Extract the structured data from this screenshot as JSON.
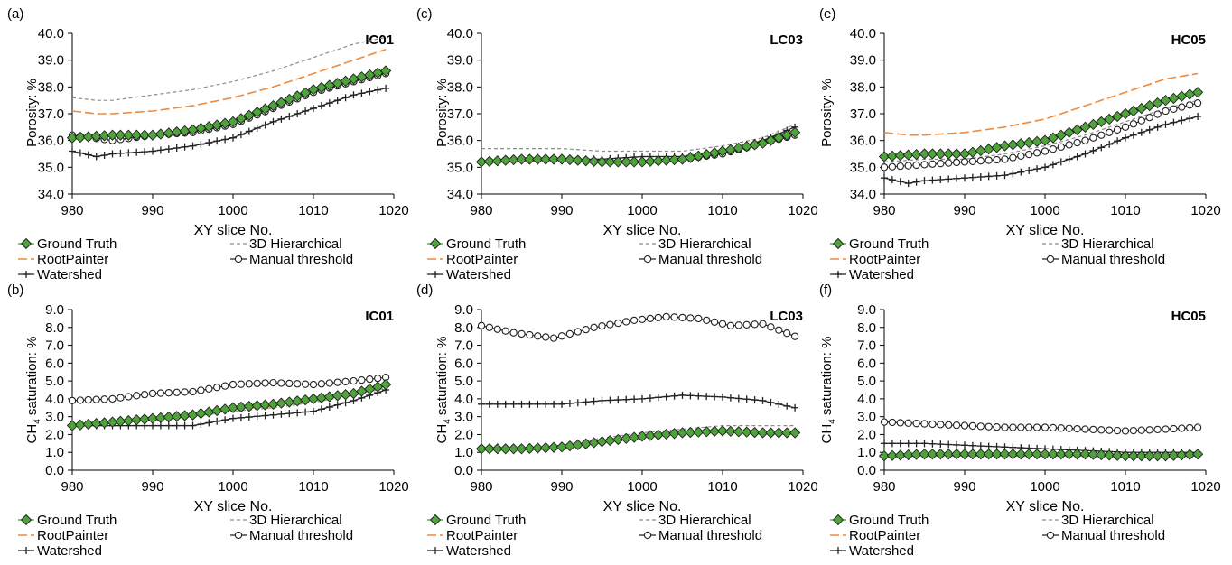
{
  "figure": {
    "xlabel": "XY slice No.",
    "x_ticks": [
      980,
      990,
      1000,
      1010,
      1020
    ],
    "legend_order": [
      "Ground Truth",
      "3D Hierarchical",
      "RootPainter",
      "Manual threshold",
      "Watershed"
    ],
    "series_styles": {
      "Ground Truth": {
        "color": "#3f9a2c",
        "marker": "diamond",
        "fill": "#4ea33a",
        "line": "solid"
      },
      "3D Hierarchical": {
        "color": "#8c8c8c",
        "marker": "none",
        "line": "dashed"
      },
      "RootPainter": {
        "color": "#f08a3c",
        "marker": "none",
        "line": "long-dash"
      },
      "Manual threshold": {
        "color": "#222222",
        "marker": "open-circle",
        "line": "solid"
      },
      "Watershed": {
        "color": "#222222",
        "marker": "plus",
        "line": "solid"
      }
    }
  },
  "chart_data": [
    {
      "panel": "(a)",
      "tag": "IC01",
      "type": "line",
      "ylabel": "Porosity: %",
      "ylim": [
        34.0,
        40.0
      ],
      "y_ticks": [
        "34.0",
        "35.0",
        "36.0",
        "37.0",
        "38.0",
        "39.0",
        "40.0"
      ],
      "xlim": [
        980,
        1020
      ],
      "series": [
        {
          "name": "Ground Truth",
          "x": [
            980,
            985,
            990,
            995,
            1000,
            1005,
            1010,
            1015,
            1019
          ],
          "y": [
            36.1,
            36.2,
            36.2,
            36.4,
            36.7,
            37.3,
            37.9,
            38.3,
            38.6
          ]
        },
        {
          "name": "3D Hierarchical",
          "x": [
            980,
            983,
            985,
            990,
            995,
            1000,
            1005,
            1010,
            1015,
            1019
          ],
          "y": [
            37.6,
            37.5,
            37.5,
            37.7,
            37.9,
            38.2,
            38.6,
            39.1,
            39.6,
            39.85
          ]
        },
        {
          "name": "RootPainter",
          "x": [
            980,
            983,
            985,
            990,
            995,
            1000,
            1005,
            1010,
            1015,
            1019
          ],
          "y": [
            37.1,
            37.0,
            37.0,
            37.1,
            37.3,
            37.6,
            38.0,
            38.5,
            39.0,
            39.4
          ]
        },
        {
          "name": "Manual threshold",
          "x": [
            980,
            985,
            990,
            995,
            1000,
            1005,
            1010,
            1015,
            1019
          ],
          "y": [
            36.2,
            36.0,
            36.2,
            36.3,
            36.6,
            37.2,
            37.8,
            38.2,
            38.5
          ]
        },
        {
          "name": "Watershed",
          "x": [
            980,
            983,
            985,
            990,
            995,
            1000,
            1005,
            1010,
            1015,
            1019
          ],
          "y": [
            35.6,
            35.4,
            35.5,
            35.6,
            35.8,
            36.1,
            36.7,
            37.2,
            37.7,
            37.95
          ]
        }
      ]
    },
    {
      "panel": "(c)",
      "tag": "LC03",
      "type": "line",
      "ylabel": "Porosity: %",
      "ylim": [
        34.0,
        40.0
      ],
      "y_ticks": [
        "34.0",
        "35.0",
        "36.0",
        "37.0",
        "38.0",
        "39.0",
        "40.0"
      ],
      "xlim": [
        980,
        1020
      ],
      "series": [
        {
          "name": "Ground Truth",
          "x": [
            980,
            985,
            990,
            995,
            1000,
            1005,
            1010,
            1015,
            1019
          ],
          "y": [
            35.2,
            35.3,
            35.3,
            35.2,
            35.2,
            35.3,
            35.6,
            35.9,
            36.3
          ]
        },
        {
          "name": "3D Hierarchical",
          "x": [
            980,
            985,
            990,
            995,
            1000,
            1005,
            1010,
            1015,
            1019
          ],
          "y": [
            35.7,
            35.7,
            35.7,
            35.6,
            35.6,
            35.6,
            35.8,
            36.1,
            36.6
          ]
        },
        {
          "name": "RootPainter",
          "x": [
            980,
            985,
            990,
            995,
            1000,
            1005,
            1010,
            1015,
            1019
          ],
          "y": [
            35.2,
            35.2,
            35.3,
            35.2,
            35.2,
            35.3,
            35.6,
            36.0,
            36.4
          ]
        },
        {
          "name": "Manual threshold",
          "x": [
            980,
            985,
            990,
            995,
            1000,
            1005,
            1010,
            1015,
            1019
          ],
          "y": [
            35.2,
            35.3,
            35.3,
            35.2,
            35.2,
            35.3,
            35.5,
            35.9,
            36.2
          ]
        },
        {
          "name": "Watershed",
          "x": [
            980,
            985,
            990,
            995,
            1000,
            1005,
            1010,
            1015,
            1019
          ],
          "y": [
            35.2,
            35.3,
            35.3,
            35.3,
            35.4,
            35.4,
            35.6,
            36.0,
            36.5
          ]
        }
      ]
    },
    {
      "panel": "(e)",
      "tag": "HC05",
      "type": "line",
      "ylabel": "Porosity: %",
      "ylim": [
        34.0,
        40.0
      ],
      "y_ticks": [
        "34.0",
        "35.0",
        "36.0",
        "37.0",
        "38.0",
        "39.0",
        "40.0"
      ],
      "xlim": [
        980,
        1020
      ],
      "series": [
        {
          "name": "Ground Truth",
          "x": [
            980,
            985,
            990,
            995,
            1000,
            1005,
            1010,
            1015,
            1019
          ],
          "y": [
            35.4,
            35.5,
            35.5,
            35.8,
            36.0,
            36.5,
            37.0,
            37.5,
            37.8
          ]
        },
        {
          "name": "3D Hierarchical",
          "x": [
            980,
            985,
            990,
            995,
            1000,
            1005,
            1010,
            1015,
            1019
          ],
          "y": [
            35.2,
            35.3,
            35.3,
            35.5,
            35.8,
            36.2,
            36.7,
            37.2,
            37.5
          ]
        },
        {
          "name": "RootPainter",
          "x": [
            980,
            983,
            985,
            990,
            995,
            1000,
            1005,
            1010,
            1015,
            1019
          ],
          "y": [
            36.3,
            36.2,
            36.2,
            36.3,
            36.5,
            36.8,
            37.3,
            37.8,
            38.3,
            38.5
          ]
        },
        {
          "name": "Manual threshold",
          "x": [
            980,
            985,
            990,
            995,
            1000,
            1005,
            1010,
            1015,
            1019
          ],
          "y": [
            35.0,
            35.1,
            35.2,
            35.3,
            35.6,
            36.0,
            36.5,
            37.1,
            37.4
          ]
        },
        {
          "name": "Watershed",
          "x": [
            980,
            983,
            985,
            990,
            995,
            1000,
            1005,
            1010,
            1015,
            1019
          ],
          "y": [
            34.6,
            34.4,
            34.5,
            34.6,
            34.7,
            35.0,
            35.5,
            36.1,
            36.6,
            36.9
          ]
        }
      ]
    },
    {
      "panel": "(b)",
      "tag": "IC01",
      "type": "line",
      "ylabel": "CH4 saturation: %",
      "ylabel_parts": {
        "main": "CH",
        "sub": "4",
        "rest": " saturation: %"
      },
      "ylim": [
        0.0,
        9.0
      ],
      "y_ticks": [
        "0.0",
        "1.0",
        "2.0",
        "3.0",
        "4.0",
        "5.0",
        "6.0",
        "7.0",
        "8.0",
        "9.0"
      ],
      "xlim": [
        980,
        1020
      ],
      "series": [
        {
          "name": "Ground Truth",
          "x": [
            980,
            985,
            990,
            995,
            1000,
            1005,
            1010,
            1015,
            1019
          ],
          "y": [
            2.5,
            2.7,
            2.9,
            3.1,
            3.5,
            3.7,
            4.0,
            4.3,
            4.8
          ]
        },
        {
          "name": "3D Hierarchical",
          "x": [
            980,
            985,
            990,
            995,
            1000,
            1005,
            1010,
            1015,
            1019
          ],
          "y": [
            2.5,
            2.6,
            2.8,
            3.0,
            3.3,
            3.5,
            3.8,
            4.2,
            4.6
          ]
        },
        {
          "name": "RootPainter",
          "x": [
            980,
            985,
            990,
            995,
            1000,
            1005,
            1010,
            1015,
            1019
          ],
          "y": [
            2.5,
            2.7,
            2.9,
            3.1,
            3.4,
            3.6,
            3.9,
            4.3,
            4.7
          ]
        },
        {
          "name": "Manual threshold",
          "x": [
            980,
            985,
            990,
            995,
            1000,
            1005,
            1010,
            1015,
            1019
          ],
          "y": [
            3.9,
            4.0,
            4.3,
            4.4,
            4.8,
            4.9,
            4.8,
            5.0,
            5.2
          ]
        },
        {
          "name": "Watershed",
          "x": [
            980,
            985,
            990,
            995,
            1000,
            1005,
            1010,
            1015,
            1019
          ],
          "y": [
            2.5,
            2.5,
            2.5,
            2.5,
            2.9,
            3.1,
            3.3,
            3.9,
            4.5
          ]
        }
      ]
    },
    {
      "panel": "(d)",
      "tag": "LC03",
      "type": "line",
      "ylabel": "CH4 saturation: %",
      "ylabel_parts": {
        "main": "CH",
        "sub": "4",
        "rest": " saturation: %"
      },
      "ylim": [
        0.0,
        9.0
      ],
      "y_ticks": [
        "0.0",
        "1.0",
        "2.0",
        "3.0",
        "4.0",
        "5.0",
        "6.0",
        "7.0",
        "8.0",
        "9.0"
      ],
      "xlim": [
        980,
        1020
      ],
      "series": [
        {
          "name": "Ground Truth",
          "x": [
            980,
            985,
            990,
            995,
            1000,
            1005,
            1010,
            1015,
            1019
          ],
          "y": [
            1.2,
            1.2,
            1.3,
            1.6,
            1.9,
            2.1,
            2.2,
            2.1,
            2.1
          ]
        },
        {
          "name": "3D Hierarchical",
          "x": [
            980,
            985,
            990,
            995,
            1000,
            1005,
            1010,
            1015,
            1019
          ],
          "y": [
            1.2,
            1.2,
            1.4,
            1.8,
            2.1,
            2.3,
            2.5,
            2.5,
            2.5
          ]
        },
        {
          "name": "RootPainter",
          "x": [
            980,
            985,
            990,
            995,
            1000,
            1005,
            1010,
            1015,
            1019
          ],
          "y": [
            1.2,
            1.2,
            1.3,
            1.6,
            1.9,
            2.1,
            2.2,
            2.1,
            2.1
          ]
        },
        {
          "name": "Manual threshold",
          "x": [
            980,
            984,
            989,
            994,
            999,
            1003,
            1007,
            1011,
            1015,
            1019
          ],
          "y": [
            8.1,
            7.7,
            7.4,
            8.0,
            8.4,
            8.6,
            8.5,
            8.1,
            8.2,
            7.5
          ]
        },
        {
          "name": "Watershed",
          "x": [
            980,
            985,
            990,
            995,
            1000,
            1005,
            1010,
            1015,
            1019
          ],
          "y": [
            3.7,
            3.7,
            3.7,
            3.9,
            4.0,
            4.2,
            4.1,
            3.9,
            3.5
          ]
        }
      ]
    },
    {
      "panel": "(f)",
      "tag": "HC05",
      "type": "line",
      "ylabel": "CH4 saturation: %",
      "ylabel_parts": {
        "main": "CH",
        "sub": "4",
        "rest": " saturation: %"
      },
      "ylim": [
        0.0,
        9.0
      ],
      "y_ticks": [
        "0.0",
        "1.0",
        "2.0",
        "3.0",
        "4.0",
        "5.0",
        "6.0",
        "7.0",
        "8.0",
        "9.0"
      ],
      "xlim": [
        980,
        1020
      ],
      "series": [
        {
          "name": "Ground Truth",
          "x": [
            980,
            985,
            990,
            995,
            1000,
            1005,
            1010,
            1015,
            1019
          ],
          "y": [
            0.8,
            0.9,
            0.9,
            0.9,
            0.9,
            0.9,
            0.8,
            0.8,
            0.9
          ]
        },
        {
          "name": "3D Hierarchical",
          "x": [
            980,
            985,
            990,
            995,
            1000,
            1005,
            1010,
            1015,
            1019
          ],
          "y": [
            0.8,
            0.9,
            0.9,
            0.9,
            0.9,
            0.9,
            0.9,
            0.9,
            0.9
          ]
        },
        {
          "name": "RootPainter",
          "x": [
            980,
            985,
            990,
            995,
            1000,
            1005,
            1010,
            1015,
            1019
          ],
          "y": [
            0.8,
            0.8,
            0.8,
            0.8,
            0.8,
            0.8,
            0.8,
            0.8,
            0.8
          ]
        },
        {
          "name": "Manual threshold",
          "x": [
            980,
            985,
            990,
            995,
            1000,
            1005,
            1010,
            1015,
            1019
          ],
          "y": [
            2.7,
            2.6,
            2.5,
            2.4,
            2.4,
            2.3,
            2.2,
            2.3,
            2.4
          ]
        },
        {
          "name": "Watershed",
          "x": [
            980,
            985,
            990,
            995,
            1000,
            1005,
            1010,
            1015,
            1019
          ],
          "y": [
            1.5,
            1.5,
            1.4,
            1.3,
            1.2,
            1.1,
            1.0,
            1.0,
            1.0
          ]
        }
      ]
    }
  ]
}
